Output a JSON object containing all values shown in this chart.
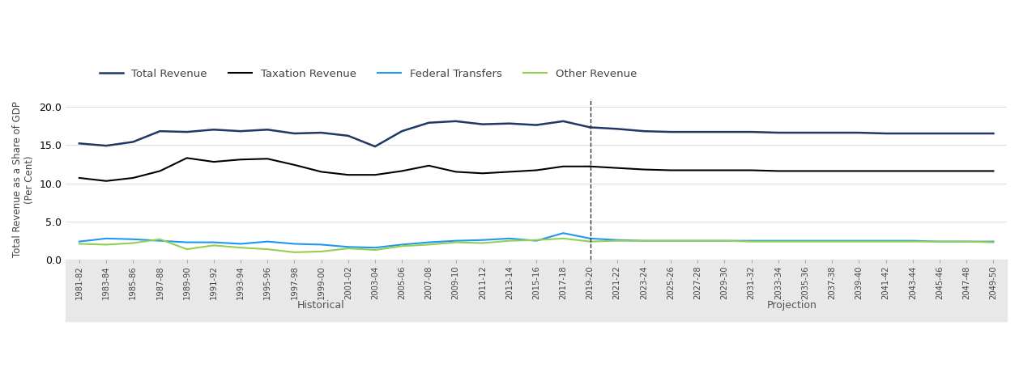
{
  "ylabel": "Total Revenue as a Share of GDP\n(Per Cent)",
  "legend_entries": [
    "Total Revenue",
    "Taxation Revenue",
    "Federal Transfers",
    "Other Revenue"
  ],
  "legend_colors": [
    "#1f3864",
    "#000000",
    "#2196f3",
    "#92d050"
  ],
  "historical_years": [
    "1981-82",
    "1983-84",
    "1985-86",
    "1987-88",
    "1989-90",
    "1991-92",
    "1993-94",
    "1995-96",
    "1997-98",
    "1999-00",
    "2001-02",
    "2003-04",
    "2005-06",
    "2007-08",
    "2009-10",
    "2011-12",
    "2013-14",
    "2015-16",
    "2017-18",
    "2019-20"
  ],
  "projection_years": [
    "2019-20",
    "2021-22",
    "2023-24",
    "2025-26",
    "2027-28",
    "2029-30",
    "2031-32",
    "2033-34",
    "2035-36",
    "2037-38",
    "2039-40",
    "2041-42",
    "2043-44",
    "2045-46",
    "2047-48",
    "2049-50"
  ],
  "total_revenue_hist": [
    15.2,
    14.9,
    15.4,
    16.8,
    16.7,
    17.0,
    16.8,
    17.0,
    16.5,
    16.6,
    16.2,
    14.8,
    16.8,
    17.9,
    18.1,
    17.7,
    17.8,
    17.6,
    18.1,
    17.3
  ],
  "total_revenue_proj": [
    17.3,
    17.1,
    16.8,
    16.7,
    16.7,
    16.7,
    16.7,
    16.6,
    16.6,
    16.6,
    16.6,
    16.5,
    16.5,
    16.5,
    16.5,
    16.5
  ],
  "taxation_revenue_hist": [
    10.7,
    10.3,
    10.7,
    11.6,
    13.3,
    12.8,
    13.1,
    13.2,
    12.4,
    11.5,
    11.1,
    11.1,
    11.6,
    12.3,
    11.5,
    11.3,
    11.5,
    11.7,
    12.2,
    12.2
  ],
  "taxation_revenue_proj": [
    12.2,
    12.0,
    11.8,
    11.7,
    11.7,
    11.7,
    11.7,
    11.6,
    11.6,
    11.6,
    11.6,
    11.6,
    11.6,
    11.6,
    11.6,
    11.6
  ],
  "federal_transfers_hist": [
    2.4,
    2.8,
    2.7,
    2.5,
    2.3,
    2.3,
    2.1,
    2.4,
    2.1,
    2.0,
    1.7,
    1.6,
    2.0,
    2.3,
    2.5,
    2.6,
    2.8,
    2.5,
    3.5,
    2.8
  ],
  "federal_transfers_proj": [
    2.8,
    2.6,
    2.5,
    2.5,
    2.5,
    2.5,
    2.5,
    2.5,
    2.5,
    2.5,
    2.5,
    2.5,
    2.5,
    2.4,
    2.4,
    2.4
  ],
  "other_revenue_hist": [
    2.1,
    2.0,
    2.2,
    2.7,
    1.4,
    1.9,
    1.6,
    1.4,
    1.0,
    1.1,
    1.5,
    1.3,
    1.8,
    2.0,
    2.3,
    2.2,
    2.5,
    2.6,
    2.8,
    2.4
  ],
  "other_revenue_proj": [
    2.4,
    2.5,
    2.5,
    2.5,
    2.5,
    2.5,
    2.4,
    2.4,
    2.4,
    2.4,
    2.4,
    2.4,
    2.4,
    2.4,
    2.4,
    2.3
  ],
  "ylim": [
    0,
    21
  ],
  "yticks": [
    0.0,
    5.0,
    10.0,
    15.0,
    20.0
  ],
  "hist_label": "Historical",
  "proj_label": "Projection",
  "line_width": 1.5
}
